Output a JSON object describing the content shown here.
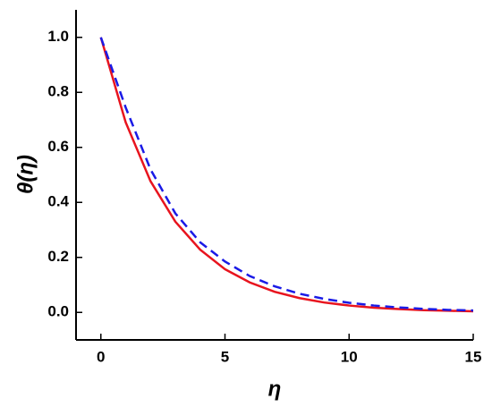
{
  "chart_data": {
    "type": "line",
    "xlabel": "η",
    "ylabel": "θ(η)",
    "x": [
      0,
      1,
      2,
      3,
      4,
      5,
      6,
      7,
      8,
      9,
      10,
      11,
      12,
      13,
      14,
      15
    ],
    "series": [
      {
        "color": "#e8141e",
        "dash": false,
        "values": [
          1,
          0.691,
          0.477,
          0.33,
          0.228,
          0.157,
          0.109,
          0.075,
          0.052,
          0.036,
          0.025,
          0.017,
          0.012,
          0.008,
          0.006,
          0.004
        ]
      },
      {
        "color": "#1a1ae6",
        "dash": true,
        "values": [
          1,
          0.745,
          0.52,
          0.36,
          0.255,
          0.185,
          0.132,
          0.095,
          0.068,
          0.049,
          0.035,
          0.025,
          0.018,
          0.013,
          0.009,
          0.007
        ]
      }
    ],
    "xlim": [
      -1,
      15
    ],
    "ylim": [
      -0.1,
      1.1
    ],
    "xticks": [
      0,
      5,
      10,
      15
    ],
    "yticks": [
      {
        "value": 0,
        "label": "0.0"
      },
      0.2,
      0.4,
      0.6,
      0.8,
      {
        "value": 1,
        "label": "1.0"
      }
    ]
  }
}
